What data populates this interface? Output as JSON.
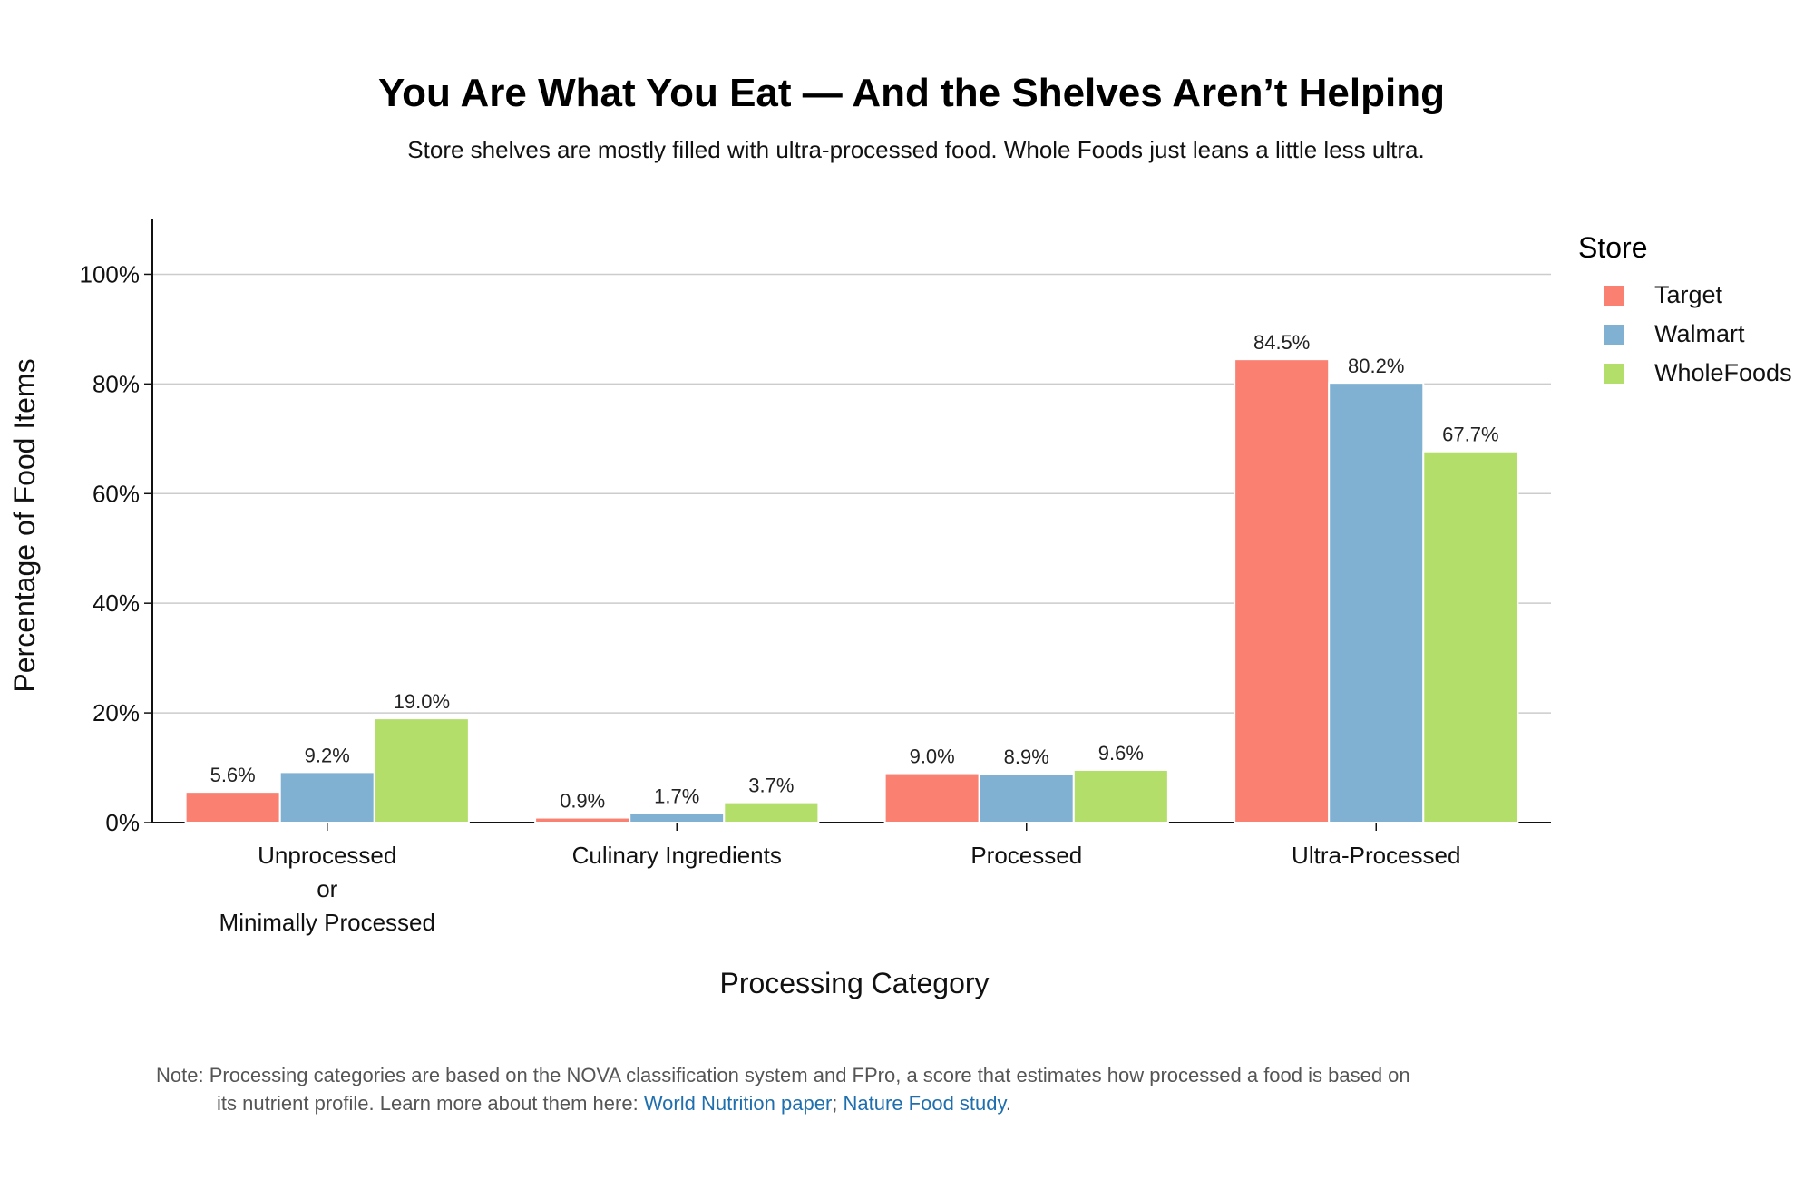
{
  "chart_data": {
    "type": "bar",
    "title": "You Are What You Eat — And the Shelves Aren’t Helping",
    "subtitle": "Store shelves are mostly filled with ultra-processed food. Whole Foods just leans a little less ultra.",
    "xlabel": "Processing Category",
    "ylabel": "Percentage of Food Items",
    "categories": [
      [
        "Unprocessed",
        "or",
        "Minimally Processed"
      ],
      [
        "Culinary Ingredients"
      ],
      [
        "Processed"
      ],
      [
        "Ultra-Processed"
      ]
    ],
    "series": [
      {
        "name": "Target",
        "color": "#fa8072",
        "values": [
          5.6,
          0.9,
          9.0,
          84.5
        ],
        "labels": [
          "5.6%",
          "0.9%",
          "9.0%",
          "84.5%"
        ]
      },
      {
        "name": "Walmart",
        "color": "#80b1d3",
        "values": [
          9.2,
          1.7,
          8.9,
          80.2
        ],
        "labels": [
          "9.2%",
          "1.7%",
          "8.9%",
          "80.2%"
        ]
      },
      {
        "name": "WholeFoods",
        "color": "#b3de69",
        "values": [
          19.0,
          3.7,
          9.6,
          67.7
        ],
        "labels": [
          "19.0%",
          "3.7%",
          "9.6%",
          "67.7%"
        ]
      }
    ],
    "yticks": [
      0,
      20,
      40,
      60,
      80,
      100
    ],
    "ytick_labels": [
      "0%",
      "20%",
      "40%",
      "60%",
      "80%",
      "100%"
    ],
    "ylim": [
      0,
      110
    ],
    "grid": "horizontal",
    "legend": {
      "title": "Store",
      "position": "right"
    }
  },
  "note": {
    "prefix": "Note: Processing categories are based on the NOVA classification system and FPro, a score that estimates how processed a food is based on",
    "line2_prefix": "its nutrient profile. Learn more about them here: ",
    "link1": "World Nutrition paper",
    "separator": "; ",
    "link2": "Nature Food study",
    "suffix": "."
  }
}
